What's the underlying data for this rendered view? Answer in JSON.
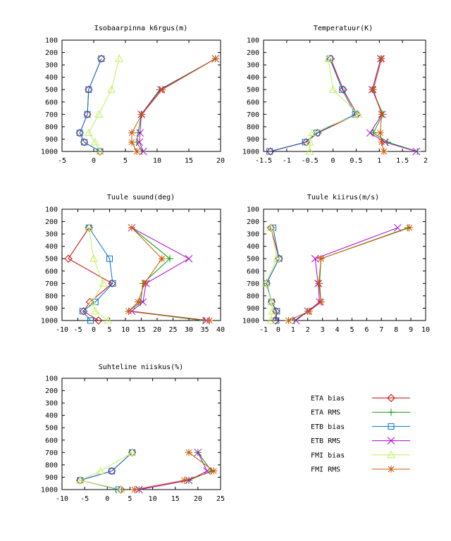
{
  "colors": {
    "ETA bias": "#cc0000",
    "ETA RMS": "#00a000",
    "ETB bias": "#0070d0",
    "ETB RMS": "#b000d0",
    "FMI bias": "#c0f060",
    "FMI RMS": "#cc5500"
  },
  "markers": {
    "ETA bias": "diamond",
    "ETA RMS": "plus",
    "ETB bias": "square",
    "ETB RMS": "cross",
    "FMI bias": "triangle",
    "FMI RMS": "star"
  },
  "legend_entries": [
    "ETA bias",
    "ETA RMS",
    "ETB bias",
    "ETB RMS",
    "FMI bias",
    "FMI RMS"
  ],
  "chart_data": [
    {
      "type": "line",
      "title": "Isobaarpinna k6rgus(m)",
      "xlim": [
        -5,
        20
      ],
      "ylim": [
        1000,
        100
      ],
      "xticks": [
        -5,
        0,
        5,
        10,
        15,
        20
      ],
      "yticks": [
        100,
        200,
        300,
        400,
        500,
        600,
        700,
        800,
        900,
        1000
      ],
      "levels": [
        250,
        500,
        700,
        850,
        925,
        1000
      ],
      "series": [
        {
          "name": "ETA bias",
          "values": [
            1.2,
            -0.8,
            -1.0,
            -2.2,
            -1.5,
            1.0
          ]
        },
        {
          "name": "ETA RMS",
          "values": [
            19.2,
            10.4,
            7.5,
            7.0,
            6.8,
            7.6
          ]
        },
        {
          "name": "ETB bias",
          "values": [
            1.2,
            -0.8,
            -1.0,
            -2.2,
            -1.5,
            1.0
          ]
        },
        {
          "name": "ETB RMS",
          "values": [
            19.2,
            10.6,
            7.5,
            7.3,
            7.2,
            7.8
          ]
        },
        {
          "name": "FMI bias",
          "values": [
            4.0,
            2.8,
            0.8,
            -0.8,
            0.2,
            1.0
          ]
        },
        {
          "name": "FMI RMS",
          "values": [
            19.2,
            10.8,
            7.6,
            6.0,
            6.0,
            6.8
          ]
        }
      ]
    },
    {
      "type": "line",
      "title": "Temperatuur(K)",
      "xlim": [
        -1.5,
        2
      ],
      "ylim": [
        1000,
        100
      ],
      "xticks": [
        -1.5,
        -1,
        -0.5,
        0,
        0.5,
        1,
        1.5,
        2
      ],
      "yticks": [
        100,
        200,
        300,
        400,
        500,
        600,
        700,
        800,
        900,
        1000
      ],
      "levels": [
        250,
        500,
        700,
        850,
        925,
        1000
      ],
      "series": [
        {
          "name": "ETA bias",
          "values": [
            -0.05,
            0.22,
            0.52,
            -0.33,
            -0.58,
            -1.35
          ]
        },
        {
          "name": "ETA RMS",
          "values": [
            1.03,
            0.85,
            1.08,
            0.87,
            1.18,
            1.82
          ]
        },
        {
          "name": "ETB bias",
          "values": [
            -0.07,
            0.2,
            0.48,
            -0.35,
            -0.6,
            -1.37
          ]
        },
        {
          "name": "ETB RMS",
          "values": [
            1.03,
            0.85,
            1.06,
            0.8,
            1.12,
            1.8
          ]
        },
        {
          "name": "FMI bias",
          "values": [
            -0.1,
            0.0,
            0.55,
            -0.45,
            -0.5,
            -0.5
          ]
        },
        {
          "name": "FMI RMS",
          "values": [
            1.05,
            0.87,
            1.05,
            1.02,
            1.05,
            1.1
          ]
        }
      ]
    },
    {
      "type": "line",
      "title": "Tuule suund(deg)",
      "xlim": [
        -10,
        40
      ],
      "ylim": [
        1000,
        100
      ],
      "xticks": [
        -10,
        -5,
        0,
        5,
        10,
        15,
        20,
        25,
        30,
        35,
        40
      ],
      "yticks": [
        100,
        200,
        300,
        400,
        500,
        600,
        700,
        800,
        900,
        1000
      ],
      "levels": [
        250,
        500,
        700,
        850,
        925,
        1000
      ],
      "series": [
        {
          "name": "ETA bias",
          "values": [
            -1.5,
            -8.0,
            5.8,
            -1.2,
            -3.2,
            1.5
          ]
        },
        {
          "name": "ETA RMS",
          "values": [
            12.0,
            24.0,
            15.5,
            14.8,
            11.0,
            34.5
          ]
        },
        {
          "name": "ETB bias",
          "values": [
            -1.5,
            5.0,
            6.0,
            0.5,
            -3.5,
            -1.0
          ]
        },
        {
          "name": "ETB RMS",
          "values": [
            12.0,
            30.0,
            16.5,
            15.5,
            12.0,
            35.5
          ]
        },
        {
          "name": "FMI bias",
          "values": [
            -1.5,
            0.0,
            3.0,
            -0.5,
            0.5,
            4.5
          ]
        },
        {
          "name": "FMI RMS",
          "values": [
            12.0,
            21.5,
            16.0,
            14.0,
            11.0,
            36.5
          ]
        }
      ]
    },
    {
      "type": "line",
      "title": "Tuule kiirus(m/s)",
      "xlim": [
        -1,
        10
      ],
      "ylim": [
        1000,
        100
      ],
      "xticks": [
        -1,
        0,
        1,
        2,
        3,
        4,
        5,
        6,
        7,
        8,
        9,
        10
      ],
      "yticks": [
        100,
        200,
        300,
        400,
        500,
        600,
        700,
        800,
        900,
        1000
      ],
      "levels": [
        250,
        500,
        700,
        850,
        925,
        1000
      ],
      "series": [
        {
          "name": "ETA bias",
          "values": [
            -0.5,
            0.05,
            -0.8,
            -0.45,
            -0.15,
            -0.2
          ]
        },
        {
          "name": "ETA RMS",
          "values": [
            8.8,
            2.9,
            2.8,
            2.9,
            2.0,
            1.1
          ]
        },
        {
          "name": "ETB bias",
          "values": [
            -0.35,
            0.05,
            -0.8,
            -0.45,
            -0.1,
            -0.15
          ]
        },
        {
          "name": "ETB RMS",
          "values": [
            8.1,
            2.5,
            2.7,
            2.8,
            2.0,
            1.2
          ]
        },
        {
          "name": "FMI bias",
          "values": [
            -0.5,
            -0.1,
            -0.85,
            -0.45,
            -0.4,
            -0.5
          ]
        },
        {
          "name": "FMI RMS",
          "values": [
            8.9,
            2.9,
            2.75,
            2.9,
            2.1,
            0.7
          ]
        }
      ]
    },
    {
      "type": "line",
      "title": "Suhteline niiskus(%)",
      "xlim": [
        -10,
        25
      ],
      "ylim": [
        1000,
        100
      ],
      "xticks": [
        -10,
        -5,
        0,
        5,
        10,
        15,
        20,
        25
      ],
      "yticks": [
        100,
        200,
        300,
        400,
        500,
        600,
        700,
        800,
        900,
        1000
      ],
      "levels": [
        700,
        850,
        925,
        1000
      ],
      "series": [
        {
          "name": "ETA bias",
          "values": [
            5.5,
            1.0,
            -6.0,
            3.0
          ]
        },
        {
          "name": "ETA RMS",
          "values": [
            20.0,
            23.0,
            18.0,
            7.0
          ]
        },
        {
          "name": "ETB bias",
          "values": [
            5.5,
            1.0,
            -6.0,
            2.5
          ]
        },
        {
          "name": "ETB RMS",
          "values": [
            20.0,
            22.0,
            18.0,
            7.0
          ]
        },
        {
          "name": "FMI bias",
          "values": [
            5.5,
            -1.5,
            -6.0,
            3.0
          ]
        },
        {
          "name": "FMI RMS",
          "values": [
            18.0,
            23.5,
            17.0,
            6.0
          ]
        }
      ]
    }
  ]
}
